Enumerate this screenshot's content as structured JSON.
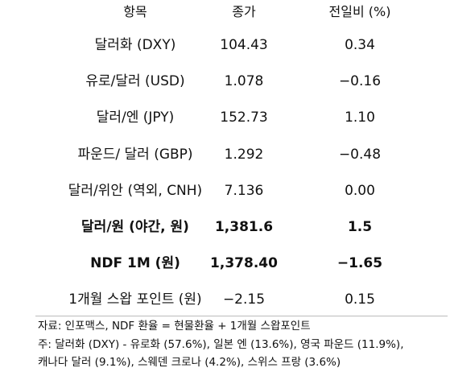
{
  "table": {
    "header": [
      "항목",
      "종가",
      "전일비 (%)"
    ],
    "rows": [
      [
        "달러화 (DXY)",
        "104.43",
        "0.34"
      ],
      [
        "유로/달러 (USD)",
        "1.078",
        "−0.16"
      ],
      [
        "달러/엔 (JPY)",
        "152.73",
        "1.10"
      ],
      [
        "파운드/ 달러 (GBP)",
        "1.292",
        "−0.48"
      ],
      [
        "달러/위안 (역외, CNH)",
        "7.136",
        "0.00"
      ],
      [
        "달러/원 (야간, 원)",
        "1,381.6",
        "1.5"
      ],
      [
        "NDF 1M (원)",
        "1,378.40",
        "−1.65"
      ],
      [
        "1개월 스왑 포인트 (원)",
        "−2.15",
        "0.15"
      ]
    ]
  },
  "notes": [
    "자료: 인포맥스, NDF 환율 = 현물환율 + 1개월 스왑포인트",
    "주: 달러화 (DXY) - 유로화 (57.6%), 일본 엔 (13.6%), 영국 파운드 (11.9%),",
    "캐나다 달러 (9.1%), 스웨덴 크로나 (4.2%), 스위스 프랑 (3.6%)"
  ]
}
